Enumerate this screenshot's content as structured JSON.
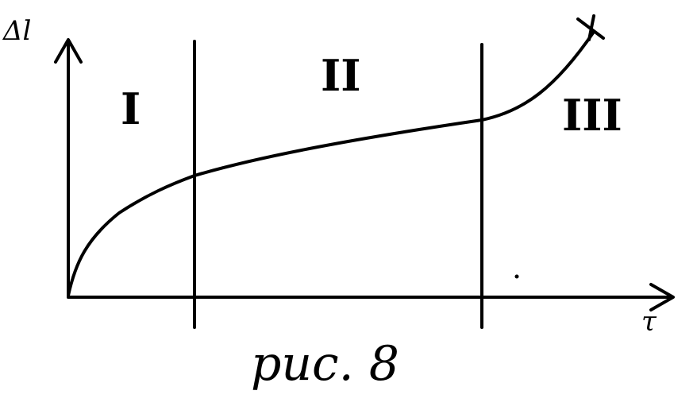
{
  "diagram": {
    "y_axis_label": "Δl",
    "x_axis_label": "τ",
    "zones": [
      {
        "label": "I"
      },
      {
        "label": "II"
      },
      {
        "label": "III"
      }
    ],
    "end_marker": "×",
    "caption": "рис. 8",
    "colors": {
      "ink": "#000000",
      "background": "#ffffff"
    }
  }
}
